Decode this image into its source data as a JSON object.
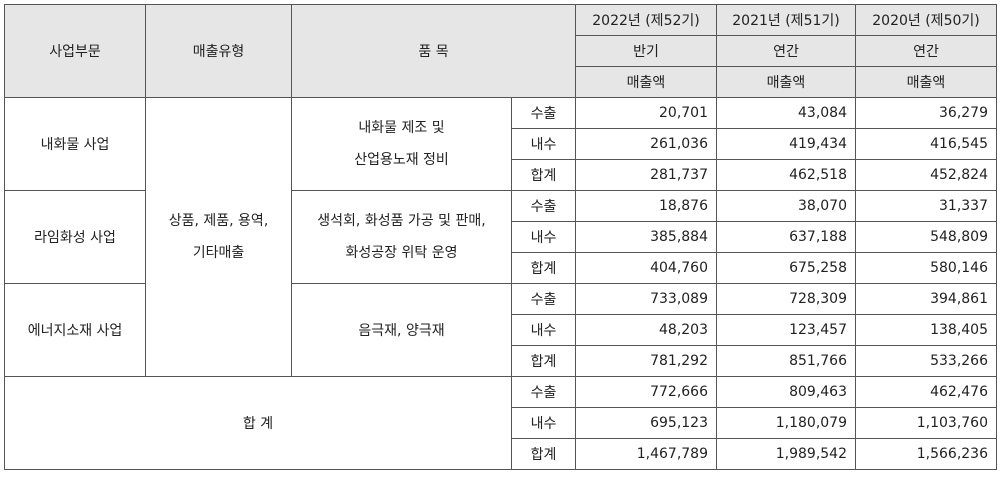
{
  "header": {
    "division": "사업부문",
    "sales_type": "매출유형",
    "item": "품 목",
    "years": [
      {
        "year": "2022년 (제52기)",
        "period": "반기",
        "metric": "매출액"
      },
      {
        "year": "2021년 (제51기)",
        "period": "연간",
        "metric": "매출액"
      },
      {
        "year": "2020년 (제50기)",
        "period": "연간",
        "metric": "매출액"
      }
    ]
  },
  "sales_type_value": [
    "상품, 제품, 용역,",
    "기타매출"
  ],
  "segments": [
    {
      "name": "내화물 사업",
      "item": [
        "내화물 제조 및",
        "산업용노재 정비"
      ],
      "rows": [
        {
          "kind": "수출",
          "values": [
            "20,701",
            "43,084",
            "36,279"
          ]
        },
        {
          "kind": "내수",
          "values": [
            "261,036",
            "419,434",
            "416,545"
          ]
        },
        {
          "kind": "합계",
          "values": [
            "281,737",
            "462,518",
            "452,824"
          ]
        }
      ]
    },
    {
      "name": "라임화성 사업",
      "item": [
        "생석회, 화성품 가공 및 판매,",
        "화성공장 위탁 운영"
      ],
      "rows": [
        {
          "kind": "수출",
          "values": [
            "18,876",
            "38,070",
            "31,337"
          ]
        },
        {
          "kind": "내수",
          "values": [
            "385,884",
            "637,188",
            "548,809"
          ]
        },
        {
          "kind": "합계",
          "values": [
            "404,760",
            "675,258",
            "580,146"
          ]
        }
      ]
    },
    {
      "name": "에너지소재 사업",
      "item": [
        "음극재, 양극재"
      ],
      "rows": [
        {
          "kind": "수출",
          "values": [
            "733,089",
            "728,309",
            "394,861"
          ]
        },
        {
          "kind": "내수",
          "values": [
            "48,203",
            "123,457",
            "138,405"
          ]
        },
        {
          "kind": "합계",
          "values": [
            "781,292",
            "851,766",
            "533,266"
          ]
        }
      ]
    }
  ],
  "total": {
    "label": "합 계",
    "rows": [
      {
        "kind": "수출",
        "values": [
          "772,666",
          "809,463",
          "462,476"
        ]
      },
      {
        "kind": "내수",
        "values": [
          "695,123",
          "1,180,079",
          "1,103,760"
        ]
      },
      {
        "kind": "합계",
        "values": [
          "1,467,789",
          "1,989,542",
          "1,566,236"
        ]
      }
    ]
  }
}
